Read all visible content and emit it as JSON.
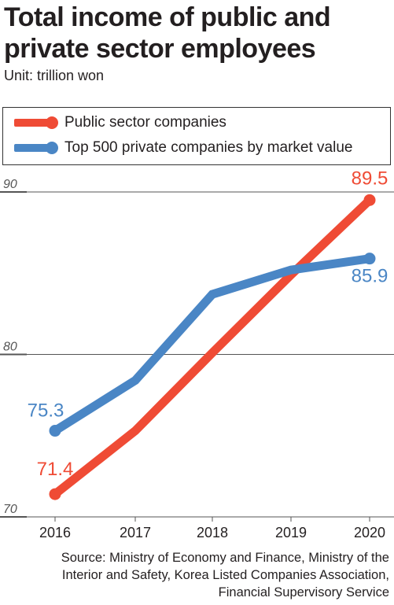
{
  "title_line1": "Total income of public and",
  "title_line2": "private sector employees",
  "unit": "Unit: trillion won",
  "source_lines": [
    "Source: Ministry of Economy and Finance, Ministry of the",
    "Interior and Safety, Korea Listed Companies Association,",
    "Financial Supervisory Service"
  ],
  "colors": {
    "public": "#ef4b35",
    "private": "#4a86c5",
    "grid": "#555555",
    "axis_text": "#555555"
  },
  "chart_data": {
    "type": "line",
    "x": [
      "2016",
      "2017",
      "2018",
      "2019",
      "2020"
    ],
    "ylim": [
      70,
      92
    ],
    "yticks": [
      "70",
      "80",
      "90"
    ],
    "grid": true,
    "legend_position": "top",
    "series": [
      {
        "name": "Public sector companies",
        "color": "#ef4b35",
        "values": [
          71.4,
          75.3,
          80.1,
          84.9,
          89.5
        ],
        "labels": {
          "0": "71.4",
          "4": "89.5"
        }
      },
      {
        "name": "Top 500 private companies by market value",
        "color": "#4a86c5",
        "values": [
          75.3,
          78.4,
          83.7,
          85.2,
          85.9
        ],
        "labels": {
          "0": "75.3",
          "4": "85.9"
        }
      }
    ]
  }
}
